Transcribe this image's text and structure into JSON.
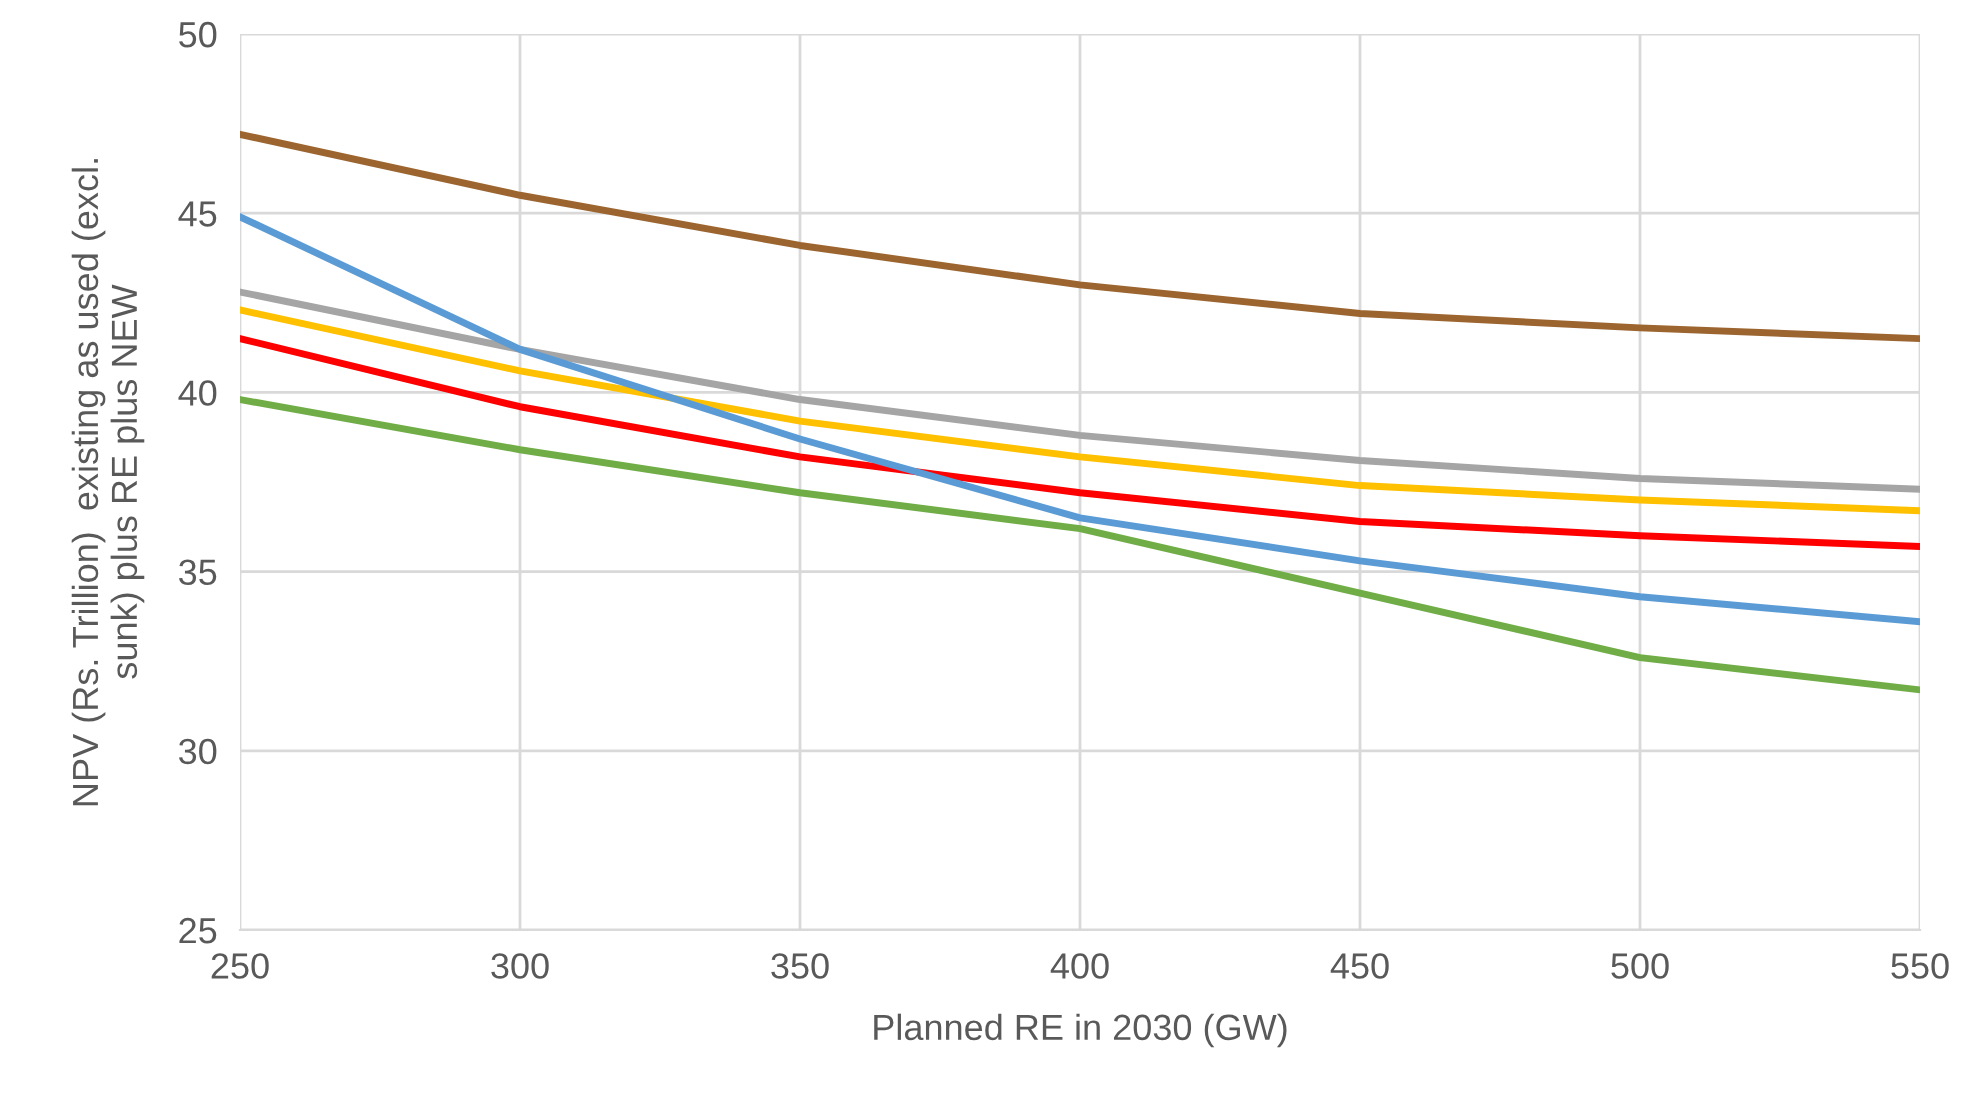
{
  "chart_data": {
    "type": "line",
    "xlabel": "Planned RE in 2030 (GW)",
    "ylabel": "NPV (Rs. Trillion)  existing as used (excl.\nsunk) plus RE plus NEW",
    "x": [
      250,
      300,
      350,
      400,
      450,
      500,
      550
    ],
    "series": [
      {
        "color": "#9c6530",
        "values": [
          47.2,
          45.5,
          44.1,
          43.0,
          42.2,
          41.8,
          41.5
        ]
      },
      {
        "color": "#ff0000",
        "values": [
          41.5,
          39.6,
          38.2,
          37.2,
          36.4,
          36.0,
          35.7
        ]
      },
      {
        "color": "#a5a5a5",
        "values": [
          42.8,
          41.2,
          39.8,
          38.8,
          38.1,
          37.6,
          37.3
        ]
      },
      {
        "color": "#ffc000",
        "values": [
          42.3,
          40.6,
          39.2,
          38.2,
          37.4,
          37.0,
          36.7
        ]
      },
      {
        "color": "#5b9bd5",
        "values": [
          44.9,
          41.2,
          38.7,
          36.5,
          35.3,
          34.3,
          33.6
        ]
      },
      {
        "color": "#70ad47",
        "values": [
          39.8,
          38.4,
          37.2,
          36.2,
          34.4,
          32.6,
          31.7
        ]
      }
    ],
    "xlim": [
      250,
      550
    ],
    "xticks": [
      250,
      300,
      350,
      400,
      450,
      500,
      550
    ],
    "ylim": [
      25,
      50
    ],
    "yticks": [
      25,
      30,
      35,
      40,
      45,
      50
    ],
    "grid": true,
    "line_style": "solid"
  }
}
